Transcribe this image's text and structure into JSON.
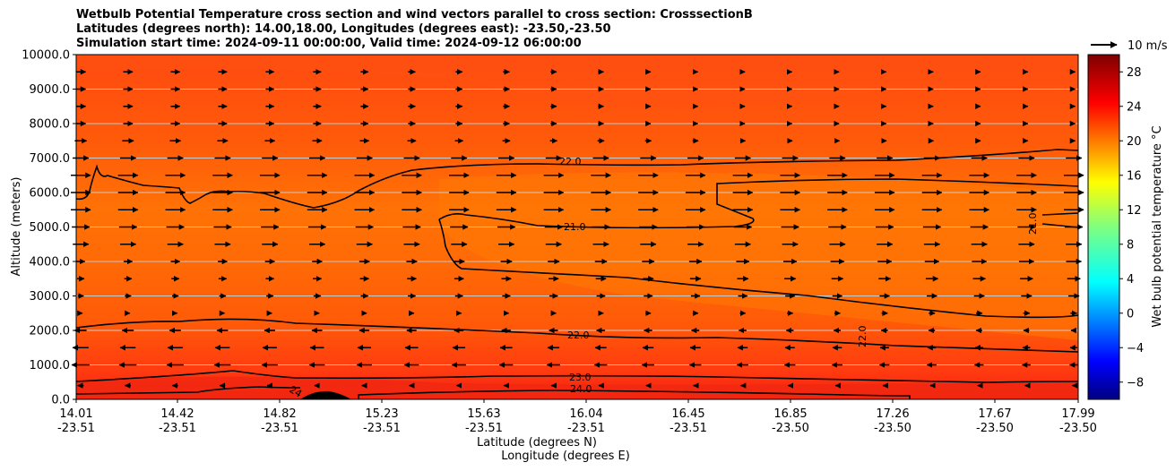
{
  "chart_data": {
    "type": "heatmap",
    "title_lines": [
      "Wetbulb Potential Temperature cross section and wind vectors parallel to cross section: CrosssectionB",
      "Latitudes (degrees north): 14.00,18.00, Longitudes (degrees east): -23.50,-23.50",
      "Simulation start time: 2024-09-11 00:00:00, Valid time: 2024-09-12 06:00:00"
    ],
    "xlabel_1": "Latitude (degrees N)",
    "xlabel_2": "Longitude (degrees E)",
    "ylabel": "Altitude (meters)",
    "x_ticks": [
      {
        "lat": "14.01",
        "lon": "-23.51"
      },
      {
        "lat": "14.42",
        "lon": "-23.51"
      },
      {
        "lat": "14.82",
        "lon": "-23.51"
      },
      {
        "lat": "15.23",
        "lon": "-23.51"
      },
      {
        "lat": "15.63",
        "lon": "-23.51"
      },
      {
        "lat": "16.04",
        "lon": "-23.51"
      },
      {
        "lat": "16.45",
        "lon": "-23.51"
      },
      {
        "lat": "16.85",
        "lon": "-23.50"
      },
      {
        "lat": "17.26",
        "lon": "-23.50"
      },
      {
        "lat": "17.67",
        "lon": "-23.50"
      },
      {
        "lat": "17.99",
        "lon": "-23.50"
      }
    ],
    "y_ticks": [
      "0.0",
      "1000.0",
      "2000.0",
      "3000.0",
      "4000.0",
      "5000.0",
      "6000.0",
      "7000.0",
      "8000.0",
      "9000.0",
      "10000.0"
    ],
    "ylim": [
      0,
      10000
    ],
    "grid": "horizontal",
    "colorbar": {
      "label": "Wet bulb potential temperature $^\\circ$C",
      "label_display": "Wet bulb potential temperature °C",
      "range": [
        -10,
        30
      ],
      "ticks": [
        "−8",
        "−4",
        "0",
        "4",
        "8",
        "12",
        "16",
        "20",
        "24",
        "28"
      ],
      "colormap": "jet"
    },
    "wind_key": "10 m/s",
    "contour_labels": [
      "22.0",
      "21.0",
      "22.0",
      "23.0",
      "24.0",
      "22.0",
      "21.0",
      "24"
    ],
    "wind_rows": [
      {
        "alt": 400,
        "dir": -1,
        "mag": 0.3
      },
      {
        "alt": 1000,
        "dir": -1,
        "mag": 0.9
      },
      {
        "alt": 1500,
        "dir": -1,
        "mag": 0.8
      },
      {
        "alt": 2000,
        "dir": -1,
        "mag": 0.6
      },
      {
        "alt": 2500,
        "dir": 1,
        "mag": 0.3
      },
      {
        "alt": 3000,
        "dir": 1,
        "mag": 0.5
      },
      {
        "alt": 3500,
        "dir": 1,
        "mag": 0.6
      },
      {
        "alt": 4000,
        "dir": 1,
        "mag": 0.7
      },
      {
        "alt": 4500,
        "dir": 1,
        "mag": 0.8
      },
      {
        "alt": 5000,
        "dir": 1,
        "mag": 0.9
      },
      {
        "alt": 5500,
        "dir": 1,
        "mag": 1.0
      },
      {
        "alt": 6000,
        "dir": 1,
        "mag": 1.0
      },
      {
        "alt": 6500,
        "dir": 1,
        "mag": 1.0
      },
      {
        "alt": 7000,
        "dir": 1,
        "mag": 0.8
      },
      {
        "alt": 7500,
        "dir": 1,
        "mag": 0.6
      },
      {
        "alt": 8000,
        "dir": 1,
        "mag": 0.5
      },
      {
        "alt": 8500,
        "dir": 1,
        "mag": 0.5
      },
      {
        "alt": 9000,
        "dir": 1,
        "mag": 0.5
      },
      {
        "alt": 9500,
        "dir": 1,
        "mag": 0.5
      }
    ]
  }
}
